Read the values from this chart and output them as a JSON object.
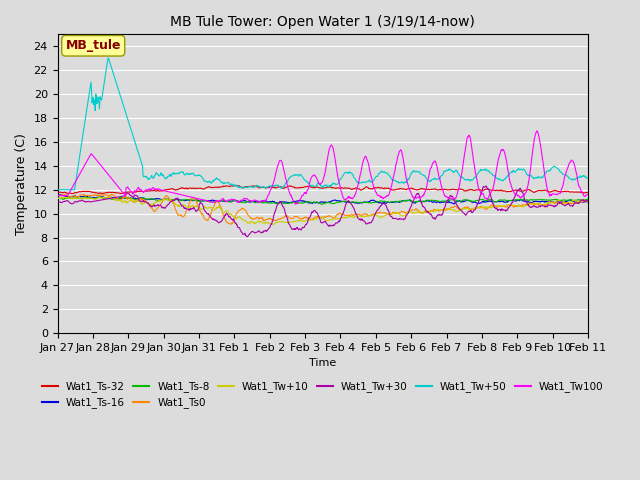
{
  "title": "MB Tule Tower: Open Water 1 (3/19/14-now)",
  "xlabel": "Time",
  "ylabel": "Temperature (C)",
  "ylim": [
    0,
    25
  ],
  "yticks": [
    0,
    2,
    4,
    6,
    8,
    10,
    12,
    14,
    16,
    18,
    20,
    22,
    24
  ],
  "bg_color": "#dcdcdc",
  "series": [
    {
      "label": "Wat1_Ts-32",
      "color": "#dd0000"
    },
    {
      "label": "Wat1_Ts-16",
      "color": "#0000dd"
    },
    {
      "label": "Wat1_Ts-8",
      "color": "#00bb00"
    },
    {
      "label": "Wat1_Ts0",
      "color": "#ff8800"
    },
    {
      "label": "Wat1_Tw+10",
      "color": "#cccc00"
    },
    {
      "label": "Wat1_Tw+30",
      "color": "#aa00aa"
    },
    {
      "label": "Wat1_Tw+50",
      "color": "#00cccc"
    },
    {
      "label": "Wat1_Tw100",
      "color": "#ff00ff"
    }
  ],
  "x_tick_labels": [
    "Jan 27",
    "Jan 28",
    "Jan 29",
    "Jan 30",
    "Jan 31",
    "Feb 1",
    "Feb 2",
    "Feb 3",
    "Feb 4",
    "Feb 5",
    "Feb 6",
    "Feb 7",
    "Feb 8",
    "Feb 9",
    "Feb 10",
    "Feb 11"
  ],
  "n_points": 1000,
  "date_range_days": 15.5
}
